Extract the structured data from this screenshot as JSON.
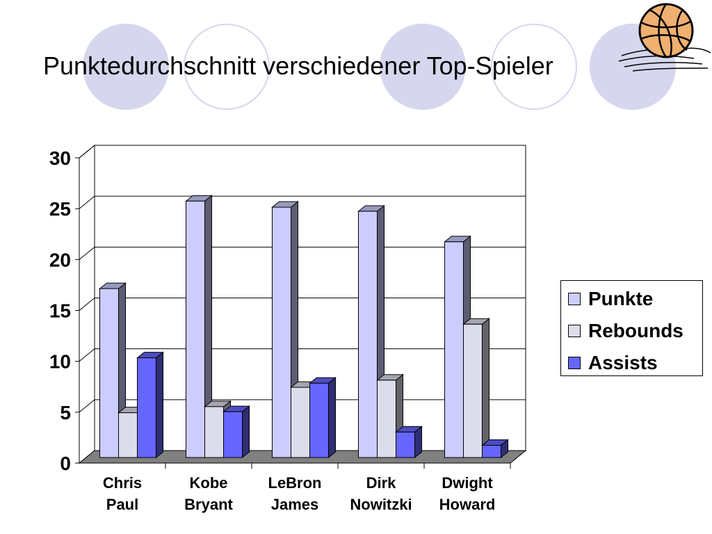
{
  "slide": {
    "title": "Punktedurchschnitt verschiedener Top-Spieler",
    "decoration": {
      "circle_fill": "#d6d6ee",
      "ring_color": "#d6d6ee",
      "icon": "basketball-icon"
    }
  },
  "chart_data": {
    "type": "bar",
    "style": "3d-clustered-column",
    "title": "",
    "xlabel": "",
    "ylabel": "",
    "ylim": [
      0,
      30
    ],
    "yticks": [
      "0",
      "5",
      "10",
      "15",
      "20",
      "25",
      "30"
    ],
    "grid": true,
    "legend_position": "right",
    "categories": [
      [
        "Chris",
        "Paul"
      ],
      [
        "Kobe",
        "Bryant"
      ],
      [
        "LeBron",
        "James"
      ],
      [
        "Dirk",
        "Nowitzki"
      ],
      [
        "Dwight",
        "Howard"
      ]
    ],
    "series": [
      {
        "name": "Punkte",
        "color": "#ccccff",
        "values": [
          16.6,
          25.2,
          24.6,
          24.2,
          21.2
        ]
      },
      {
        "name": "Rebounds",
        "color": "#dcdcec",
        "values": [
          4.4,
          5.0,
          6.9,
          7.6,
          13.1
        ]
      },
      {
        "name": "Assists",
        "color": "#6666ff",
        "values": [
          9.8,
          4.5,
          7.3,
          2.5,
          1.2
        ]
      }
    ],
    "floor_color": "#808080"
  }
}
